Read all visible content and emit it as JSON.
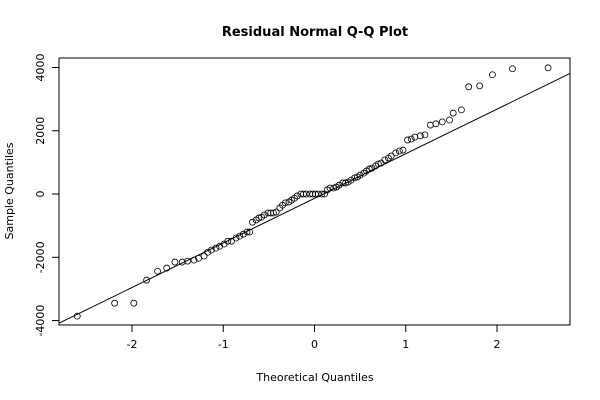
{
  "chart_data": {
    "type": "scatter",
    "title": "Residual Normal Q-Q Plot",
    "x_label": "Theoretical Quantiles",
    "y_label": "Sample Quantiles",
    "x": [
      -2.6,
      -2.19,
      -1.98,
      -1.84,
      -1.72,
      -1.62,
      -1.53,
      -1.45,
      -1.39,
      -1.32,
      -1.27,
      -1.21,
      -1.17,
      -1.13,
      -1.08,
      -1.04,
      -0.99,
      -0.95,
      -0.91,
      -0.86,
      -0.82,
      -0.78,
      -0.74,
      -0.71,
      -0.68,
      -0.64,
      -0.61,
      -0.58,
      -0.55,
      -0.51,
      -0.48,
      -0.45,
      -0.42,
      -0.38,
      -0.35,
      -0.32,
      -0.28,
      -0.25,
      -0.22,
      -0.19,
      -0.15,
      -0.12,
      -0.09,
      -0.05,
      -0.02,
      0.01,
      0.04,
      0.08,
      0.11,
      0.14,
      0.17,
      0.21,
      0.24,
      0.27,
      0.31,
      0.34,
      0.37,
      0.4,
      0.44,
      0.47,
      0.5,
      0.54,
      0.57,
      0.6,
      0.63,
      0.67,
      0.7,
      0.73,
      0.77,
      0.81,
      0.84,
      0.89,
      0.93,
      0.97,
      1.02,
      1.06,
      1.1,
      1.16,
      1.21,
      1.27,
      1.33,
      1.4,
      1.48,
      1.52,
      1.61,
      1.69,
      1.81,
      1.95,
      2.17,
      2.56
    ],
    "values": [
      -3860,
      -3450,
      -3450,
      -2720,
      -2440,
      -2340,
      -2150,
      -2150,
      -2120,
      -2090,
      -2030,
      -1960,
      -1840,
      -1770,
      -1710,
      -1650,
      -1580,
      -1490,
      -1490,
      -1390,
      -1330,
      -1270,
      -1200,
      -1200,
      -890,
      -820,
      -760,
      -730,
      -660,
      -600,
      -600,
      -600,
      -570,
      -440,
      -350,
      -280,
      -250,
      -190,
      -130,
      -60,
      0,
      0,
      0,
      0,
      0,
      0,
      0,
      0,
      0,
      130,
      190,
      190,
      220,
      280,
      350,
      350,
      380,
      440,
      510,
      540,
      600,
      660,
      730,
      790,
      820,
      890,
      950,
      980,
      1080,
      1140,
      1200,
      1300,
      1360,
      1390,
      1710,
      1740,
      1800,
      1840,
      1870,
      2180,
      2220,
      2280,
      2340,
      2560,
      2660,
      3390,
      3420,
      3770,
      3960,
      3990
    ],
    "color": "#000000",
    "reference_line": {
      "intercept": -136,
      "slope": 1410
    },
    "xlim": [
      -2.8,
      2.8
    ],
    "ylim": [
      -4140,
      4300
    ],
    "xticks": [
      -2,
      -1,
      0,
      1,
      2
    ],
    "yticks": [
      -4000,
      -2000,
      0,
      2000,
      4000
    ]
  }
}
